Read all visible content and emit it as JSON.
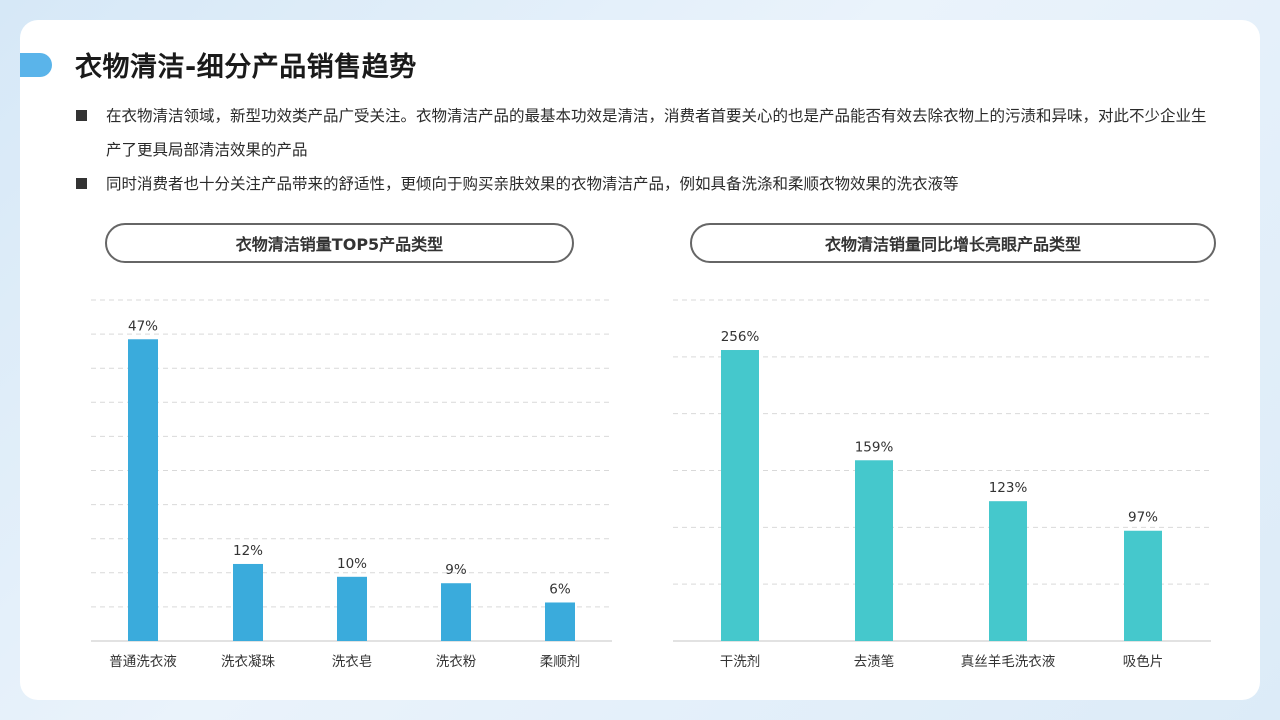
{
  "title": "衣物清洁-细分产品销售趋势",
  "bullets": [
    "在衣物清洁领域，新型功效类产品广受关注。衣物清洁产品的最基本功效是清洁，消费者首要关心的也是产品能否有效去除衣物上的污渍和异味，对此不少企业生产了更具局部清洁效果的产品",
    "同时消费者也十分关注产品带来的舒适性，更倾向于购买亲肤效果的衣物清洁产品，例如具备洗涤和柔顺衣物效果的洗衣液等"
  ],
  "colors": {
    "accent": "#5ab4ea",
    "bar_left": "#3aabdc",
    "bar_right": "#45c8cc"
  },
  "chart_data": [
    {
      "type": "bar",
      "title": "衣物清洁销量TOP5产品类型",
      "categories": [
        "普通洗衣液",
        "洗衣凝珠",
        "洗衣皂",
        "洗衣粉",
        "柔顺剂"
      ],
      "values": [
        47,
        12,
        10,
        9,
        6
      ],
      "value_labels": [
        "47%",
        "12%",
        "10%",
        "9%",
        "6%"
      ],
      "unit": "%",
      "ylim": [
        0,
        50
      ],
      "grid": true,
      "color": "#3aabdc"
    },
    {
      "type": "bar",
      "title": "衣物清洁销量同比增长亮眼产品类型",
      "categories": [
        "干洗剂",
        "去渍笔",
        "真丝羊毛洗衣液",
        "吸色片"
      ],
      "values": [
        256,
        159,
        123,
        97
      ],
      "value_labels": [
        "256%",
        "159%",
        "123%",
        "97%"
      ],
      "unit": "%",
      "ylim": [
        0,
        300
      ],
      "grid": true,
      "color": "#45c8cc"
    }
  ]
}
